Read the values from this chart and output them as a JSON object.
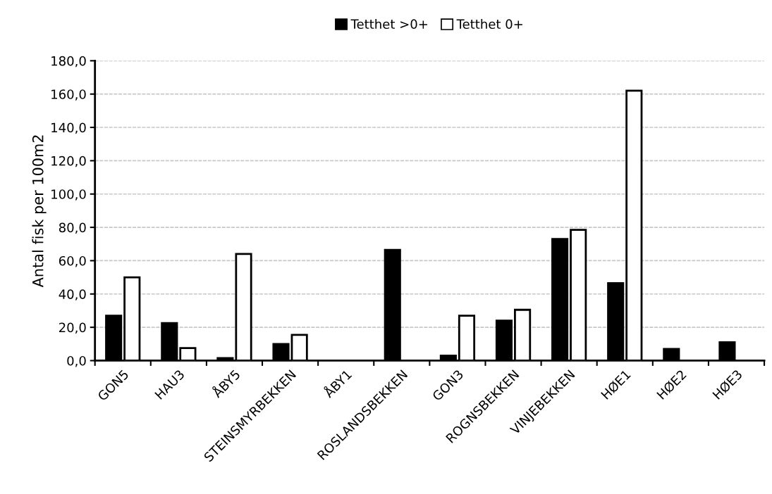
{
  "chart_data": {
    "type": "bar",
    "ylabel": "Antal fisk per 100m2",
    "categories": [
      "GON5",
      "HAU3",
      "ÅBY5",
      "STEINSMYRBEKKEN",
      "ÅBY1",
      "ROSLANDSBEKKEN",
      "GON3",
      "ROGNSBEKKEN",
      "VINJEBEKKEN",
      "HØE1",
      "HØE2",
      "HØE3"
    ],
    "series": [
      {
        "name": "Tetthet >0+",
        "color": "#000000",
        "values": [
          27,
          22.5,
          1.5,
          10,
          null,
          66.5,
          3,
          24,
          73,
          46.5,
          7,
          11
        ]
      },
      {
        "name": "Tetthet 0+",
        "color": "#ffffff",
        "values": [
          50,
          7.5,
          64,
          15.5,
          null,
          null,
          27,
          30.5,
          78.5,
          162,
          null,
          null
        ]
      }
    ],
    "ylim": [
      0,
      180
    ],
    "yticks": [
      {
        "value": 0,
        "label": "0,0"
      },
      {
        "value": 20,
        "label": "20,0"
      },
      {
        "value": 40,
        "label": "40,0"
      },
      {
        "value": 60,
        "label": "60,0"
      },
      {
        "value": 80,
        "label": "80,0"
      },
      {
        "value": 100,
        "label": "100,0"
      },
      {
        "value": 120,
        "label": "120,0"
      },
      {
        "value": 140,
        "label": "140,0"
      },
      {
        "value": 160,
        "label": "160,0"
      },
      {
        "value": 180,
        "label": "180,0"
      }
    ],
    "grid": "y",
    "legend": "top"
  }
}
